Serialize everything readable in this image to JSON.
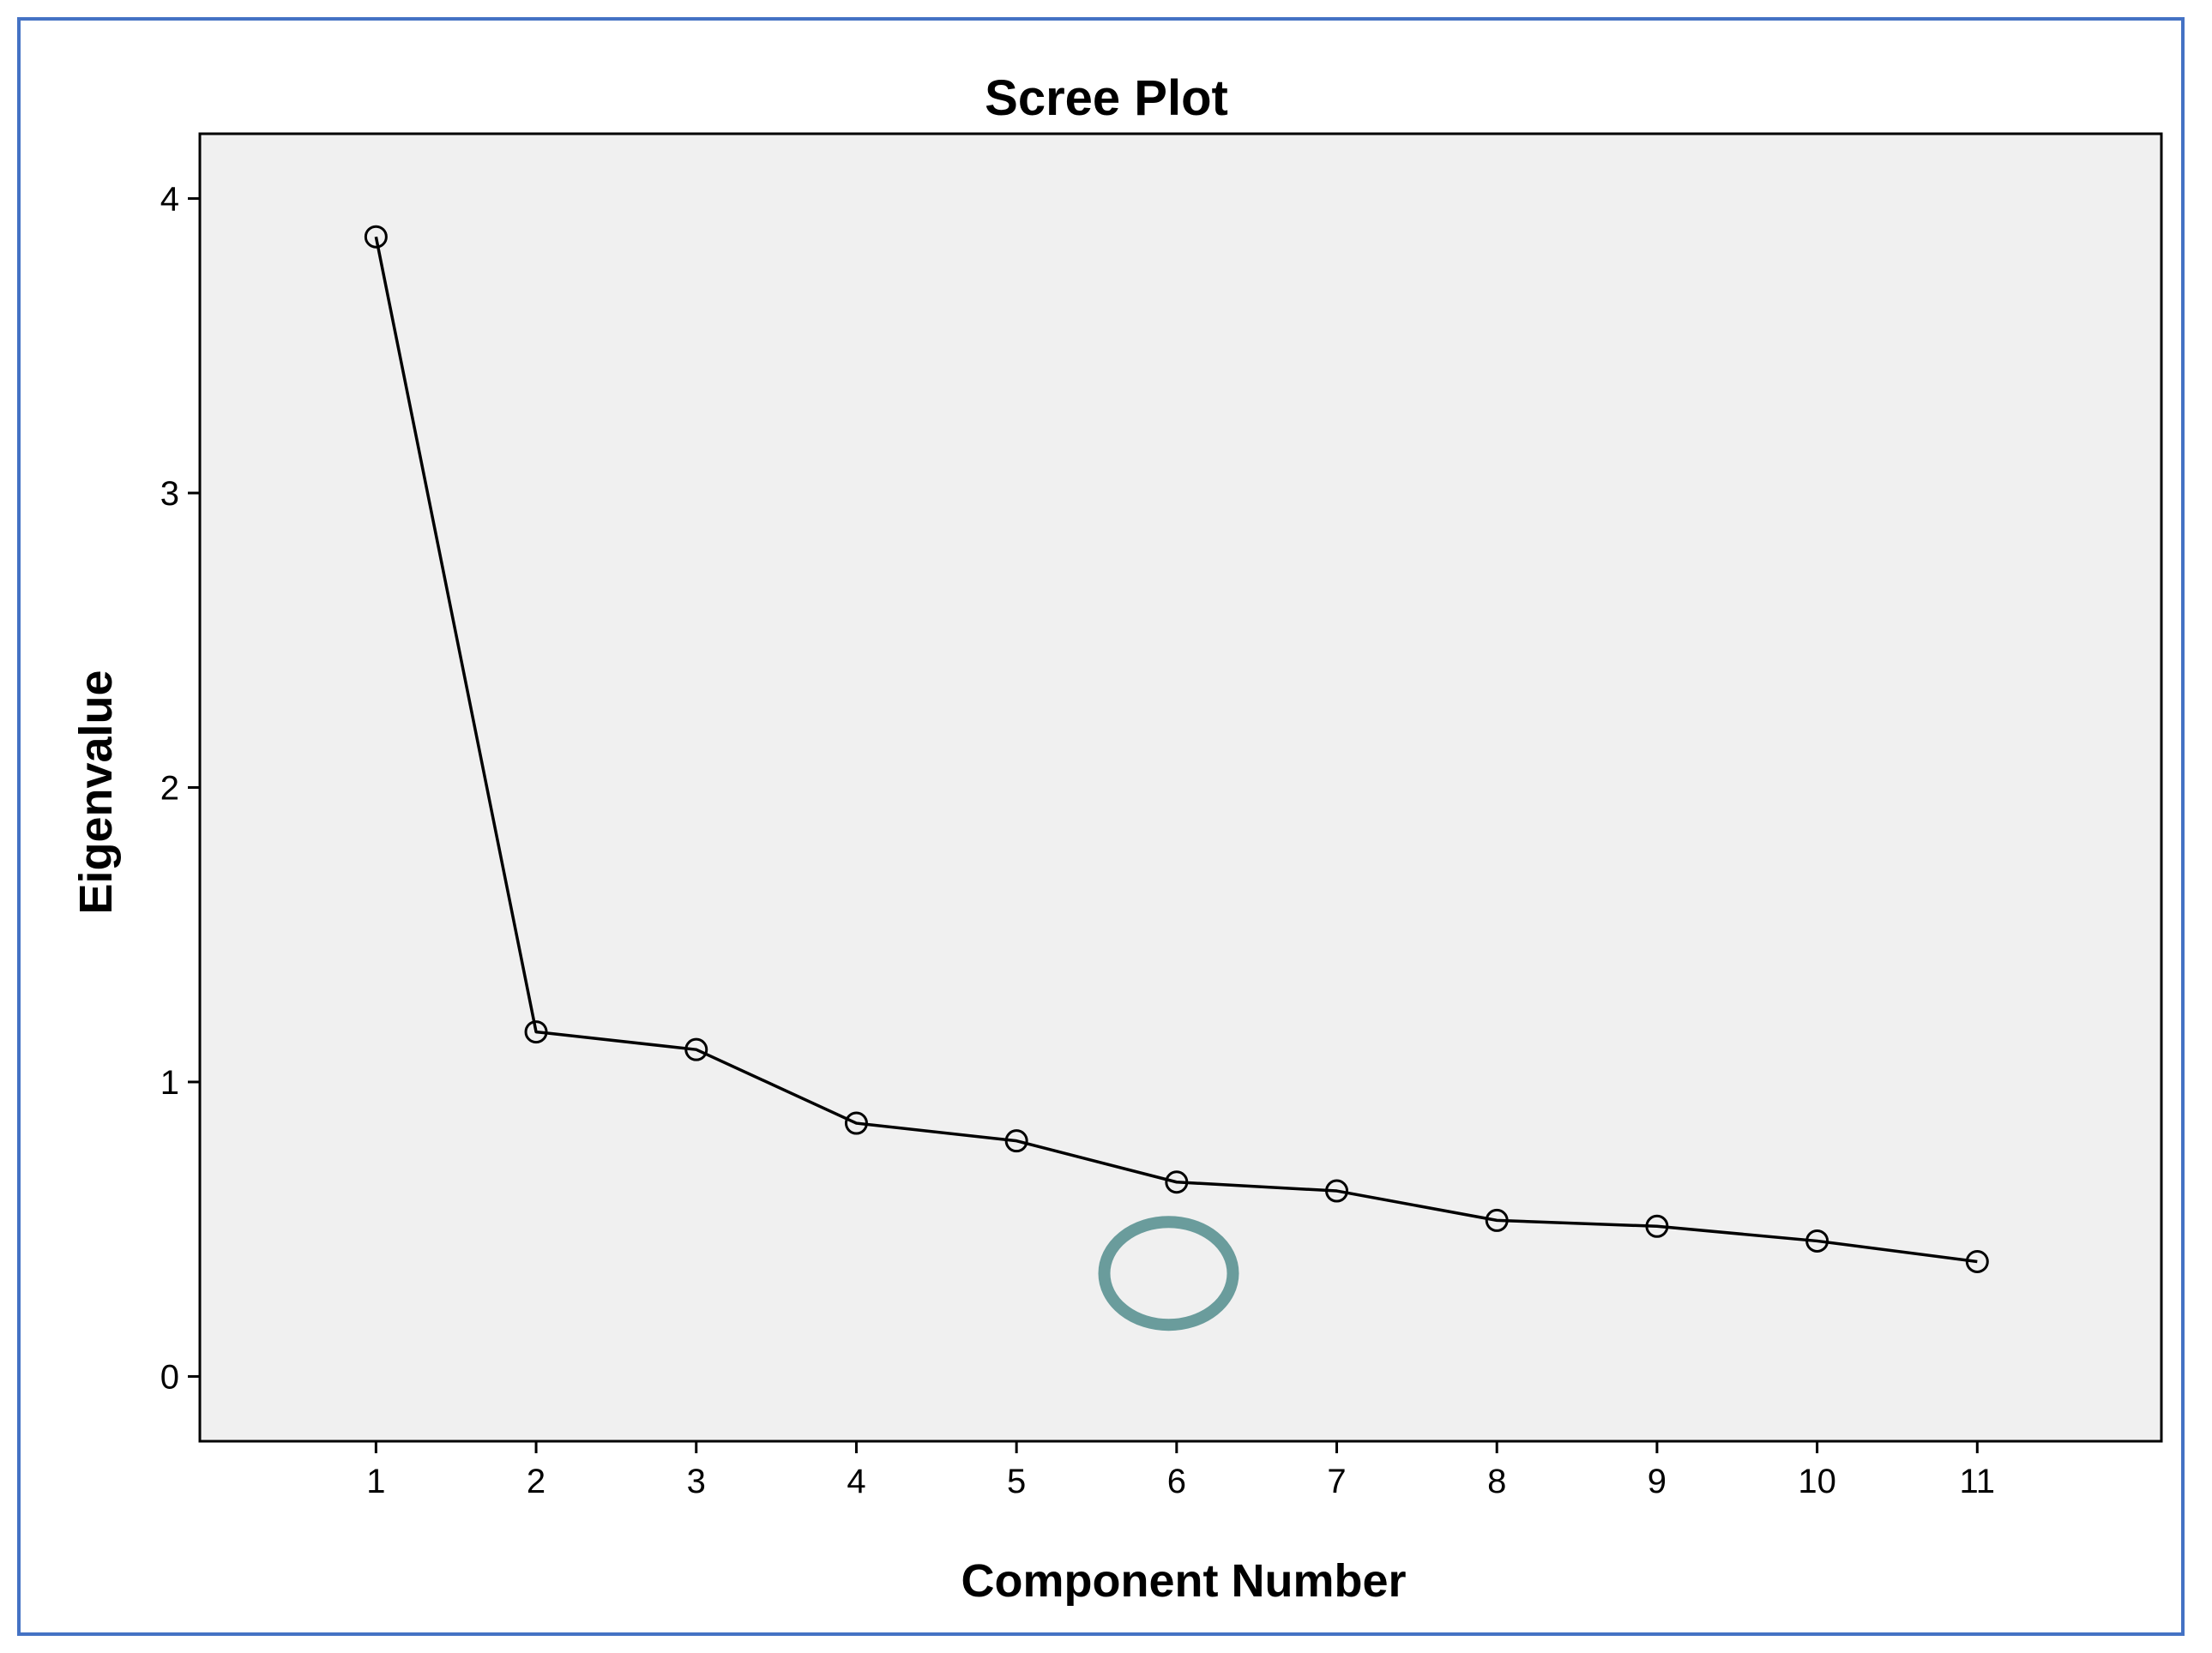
{
  "chart_data": {
    "type": "line",
    "title": "Scree Plot",
    "xlabel": "Component Number",
    "ylabel": "Eigenvalue",
    "x": [
      1,
      2,
      3,
      4,
      5,
      6,
      7,
      8,
      9,
      10,
      11
    ],
    "series": [
      {
        "values": [
          3.87,
          1.17,
          1.11,
          0.86,
          0.8,
          0.66,
          0.63,
          0.53,
          0.51,
          0.46,
          0.39
        ]
      }
    ],
    "x_ticks": [
      "1",
      "2",
      "3",
      "4",
      "5",
      "6",
      "7",
      "8",
      "9",
      "10",
      "11"
    ],
    "y_ticks": [
      "0",
      "1",
      "2",
      "3",
      "4"
    ],
    "xlim": [
      -0.1,
      12.15
    ],
    "ylim": [
      -0.22,
      4.22
    ],
    "grid": false,
    "legend": "none",
    "annotation": {
      "shape": "ellipse",
      "x": 5.95,
      "y": 0.35,
      "color": "#6a9c9c"
    },
    "colors": {
      "frame_border": "#4472c4",
      "plot_background": "#f0f0f0",
      "line": "#000000",
      "marker": "#000000"
    }
  }
}
